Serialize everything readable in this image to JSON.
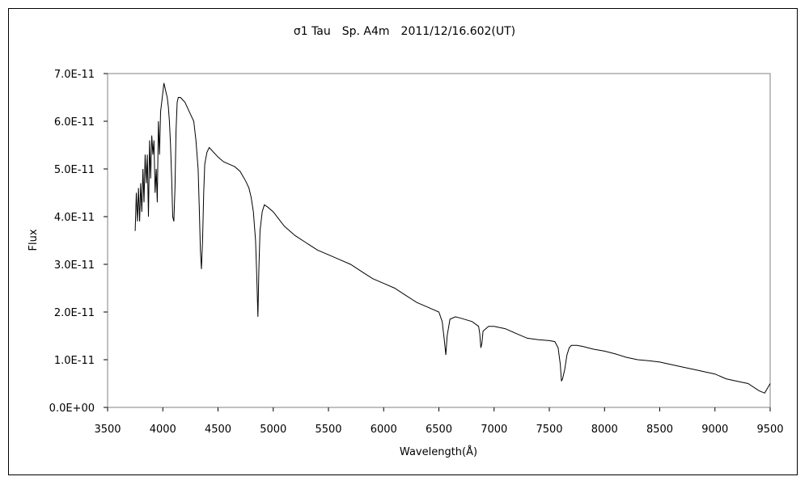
{
  "chart_data": {
    "type": "line",
    "title": "σ1 Tau　Sp. A4m　2011/12/16.602(UT)",
    "xlabel": "Wavelength(Å)",
    "ylabel": "Flux",
    "xlim": [
      3500,
      9500
    ],
    "ylim": [
      0,
      7e-11
    ],
    "x_ticks": [
      3500,
      4000,
      4500,
      5000,
      5500,
      6000,
      6500,
      7000,
      7500,
      8000,
      8500,
      9000,
      9500
    ],
    "x_tick_labels": [
      "3500",
      "4000",
      "4500",
      "5000",
      "5500",
      "6000",
      "6500",
      "7000",
      "7500",
      "8000",
      "8500",
      "9000",
      "9500"
    ],
    "y_ticks": [
      0,
      1e-11,
      2e-11,
      3e-11,
      4e-11,
      5e-11,
      6e-11,
      7e-11
    ],
    "y_tick_labels": [
      "0.0E+00",
      "1.0E-11",
      "2.0E-11",
      "3.0E-11",
      "4.0E-11",
      "5.0E-11",
      "6.0E-11",
      "7.0E-11"
    ],
    "grid": false,
    "legend": "none",
    "line_color": "#000000",
    "series": [
      {
        "x": [
          3750,
          3760,
          3770,
          3780,
          3790,
          3800,
          3810,
          3820,
          3830,
          3840,
          3850,
          3860,
          3870,
          3880,
          3890,
          3900,
          3910,
          3920,
          3930,
          3940,
          3950,
          3960,
          3970,
          3980,
          3990,
          4000,
          4010,
          4020,
          4030,
          4040,
          4050,
          4060,
          4070,
          4080,
          4090,
          4100,
          4110,
          4120,
          4130,
          4140,
          4150,
          4160,
          4180,
          4200,
          4220,
          4240,
          4260,
          4280,
          4300,
          4320,
          4330,
          4340,
          4350,
          4360,
          4370,
          4380,
          4400,
          4420,
          4440,
          4460,
          4480,
          4500,
          4550,
          4600,
          4650,
          4700,
          4750,
          4780,
          4800,
          4820,
          4840,
          4850,
          4861,
          4870,
          4880,
          4900,
          4920,
          4950,
          5000,
          5050,
          5100,
          5150,
          5200,
          5300,
          5400,
          5500,
          5600,
          5700,
          5800,
          5900,
          6000,
          6100,
          6200,
          6300,
          6400,
          6450,
          6500,
          6530,
          6550,
          6563,
          6575,
          6600,
          6650,
          6700,
          6800,
          6860,
          6870,
          6880,
          6890,
          6900,
          6950,
          7000,
          7100,
          7200,
          7300,
          7400,
          7500,
          7550,
          7580,
          7600,
          7610,
          7620,
          7640,
          7660,
          7680,
          7700,
          7750,
          7800,
          7900,
          8000,
          8100,
          8200,
          8300,
          8400,
          8500,
          8600,
          8700,
          8800,
          8900,
          9000,
          9100,
          9200,
          9300,
          9400,
          9450,
          9500
        ],
        "y": [
          3.7e-11,
          4.5e-11,
          3.9e-11,
          4.6e-11,
          3.9e-11,
          4.7e-11,
          4.1e-11,
          5e-11,
          4.3e-11,
          5.3e-11,
          4.7e-11,
          5.3e-11,
          4e-11,
          5.6e-11,
          4.8e-11,
          5.7e-11,
          5.3e-11,
          5.6e-11,
          4.5e-11,
          5e-11,
          4.3e-11,
          6e-11,
          5.3e-11,
          6.2e-11,
          6.4e-11,
          6.6e-11,
          6.8e-11,
          6.7e-11,
          6.6e-11,
          6.5e-11,
          6.3e-11,
          6e-11,
          5.5e-11,
          4.8e-11,
          4e-11,
          3.9e-11,
          4.6e-11,
          5.8e-11,
          6.4e-11,
          6.5e-11,
          6.5e-11,
          6.5e-11,
          6.45e-11,
          6.4e-11,
          6.3e-11,
          6.2e-11,
          6.1e-11,
          6e-11,
          5.6e-11,
          5e-11,
          4.2e-11,
          3.3e-11,
          2.9e-11,
          3.5e-11,
          4.5e-11,
          5.1e-11,
          5.35e-11,
          5.45e-11,
          5.4e-11,
          5.35e-11,
          5.3e-11,
          5.25e-11,
          5.15e-11,
          5.1e-11,
          5.05e-11,
          4.95e-11,
          4.75e-11,
          4.6e-11,
          4.4e-11,
          4.1e-11,
          3.5e-11,
          2.8e-11,
          1.9e-11,
          2.9e-11,
          3.7e-11,
          4.1e-11,
          4.25e-11,
          4.2e-11,
          4.1e-11,
          3.95e-11,
          3.8e-11,
          3.7e-11,
          3.6e-11,
          3.45e-11,
          3.3e-11,
          3.2e-11,
          3.1e-11,
          3e-11,
          2.85e-11,
          2.7e-11,
          2.6e-11,
          2.5e-11,
          2.35e-11,
          2.2e-11,
          2.1e-11,
          2.05e-11,
          2e-11,
          1.8e-11,
          1.4e-11,
          1.1e-11,
          1.5e-11,
          1.85e-11,
          1.9e-11,
          1.87e-11,
          1.8e-11,
          1.7e-11,
          1.55e-11,
          1.25e-11,
          1.35e-11,
          1.6e-11,
          1.7e-11,
          1.7e-11,
          1.65e-11,
          1.55e-11,
          1.45e-11,
          1.42e-11,
          1.4e-11,
          1.38e-11,
          1.25e-11,
          9e-12,
          5.5e-12,
          6e-12,
          8e-12,
          1.1e-11,
          1.25e-11,
          1.3e-11,
          1.3e-11,
          1.28e-11,
          1.22e-11,
          1.18e-11,
          1.12e-11,
          1.05e-11,
          1e-11,
          9.8e-12,
          9.5e-12,
          9e-12,
          8.5e-12,
          8e-12,
          7.5e-12,
          7e-12,
          6e-12,
          5.5e-12,
          5e-12,
          3.5e-12,
          3e-12,
          5e-12
        ]
      }
    ]
  }
}
